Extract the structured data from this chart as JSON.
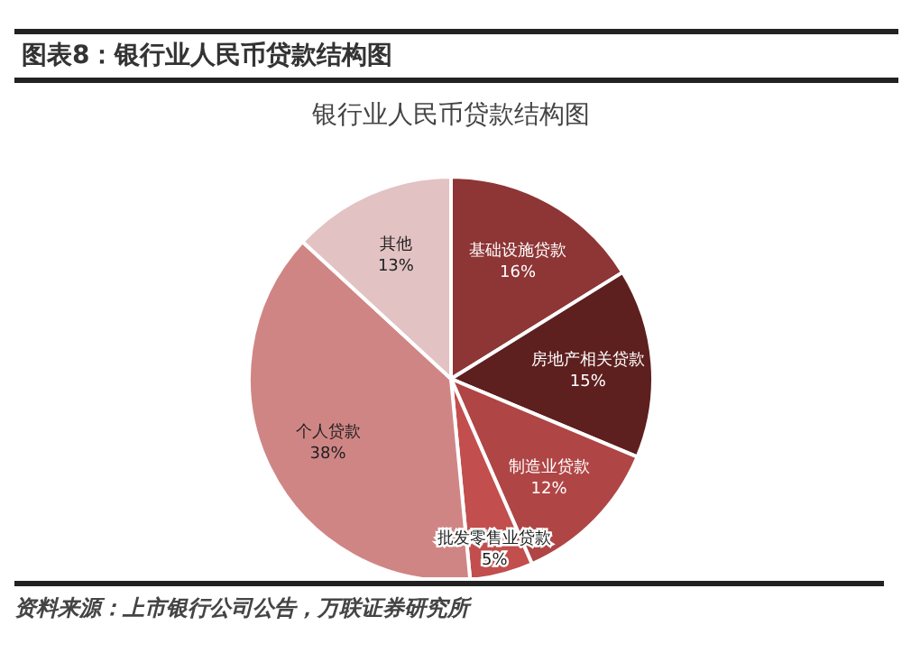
{
  "chart_data": {
    "type": "pie",
    "title": "图表8：银行业人民币贷款结构图",
    "subtitle": "银行业人民币贷款结构图",
    "categories": [
      "基础设施贷款",
      "房地产相关贷款",
      "制造业贷款",
      "批发零售业贷款",
      "个人贷款",
      "其他"
    ],
    "values": [
      16,
      15,
      12,
      5,
      38,
      13
    ],
    "value_labels": [
      "16%",
      "15%",
      "12%",
      "5%",
      "38%",
      "13%"
    ],
    "colors": [
      "#8e3535",
      "#5e1f1f",
      "#b04545",
      "#c24e4e",
      "#d08585",
      "#e2c2c2"
    ],
    "annotations": [
      "资料来源：上市银行公司公告，万联证券研究所"
    ],
    "legend": false
  }
}
